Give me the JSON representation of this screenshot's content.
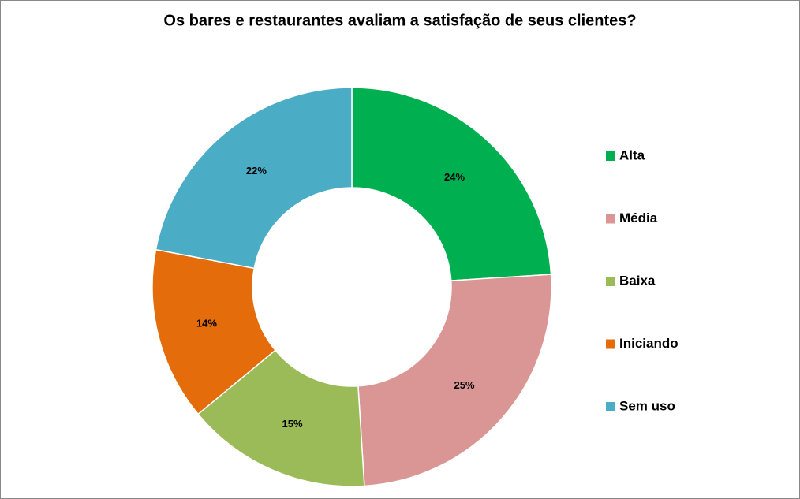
{
  "chart_data": {
    "type": "donut",
    "title": "Os bares e restaurantes avaliam a satisfação de seus clientes?",
    "categories": [
      "Alta",
      "Média",
      "Baixa",
      "Iniciando",
      "Sem uso"
    ],
    "values": [
      24,
      25,
      15,
      14,
      22
    ],
    "value_labels": [
      "24%",
      "25%",
      "15%",
      "14%",
      "22%"
    ],
    "colors": [
      "#00b050",
      "#d99694",
      "#9bbb59",
      "#e46c0a",
      "#4bacc6"
    ],
    "legend": "right"
  }
}
